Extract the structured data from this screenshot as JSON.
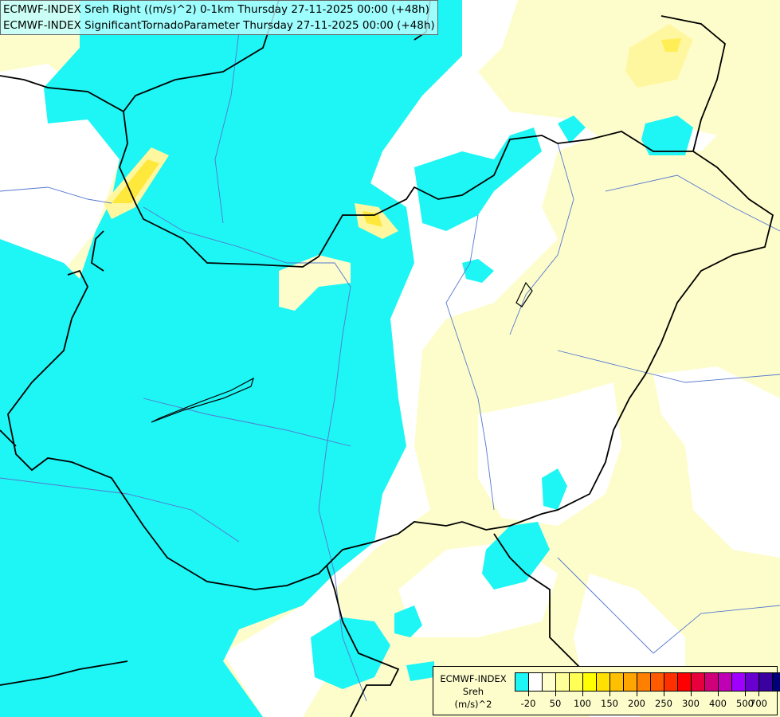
{
  "title": {
    "line1": "ECMWF-INDEX Sreh Right ((m/s)^2) 0-1km Thursday 27-11-2025 00:00 (+48h)",
    "line2": "ECMWF-INDEX SignificantTornadoParameter Thursday 27-11-2025 00:00 (+48h)"
  },
  "legend": {
    "line1": "ECMWF-INDEX",
    "line2": "Sreh",
    "line3": "(m/s)^2",
    "colors": [
      "#1ef5f5",
      "#ffffff",
      "#ffffcc",
      "#ffff99",
      "#ffff55",
      "#ffff00",
      "#ffe000",
      "#ffc000",
      "#ffa500",
      "#ff8000",
      "#ff5a00",
      "#ff3000",
      "#ff0000",
      "#e8003c",
      "#d0007a",
      "#c000b4",
      "#a000ff",
      "#6a00d0",
      "#3a00a0",
      "#00007a"
    ],
    "ticks": [
      {
        "label": "-20",
        "after": 1
      },
      {
        "label": "50",
        "after": 3
      },
      {
        "label": "100",
        "after": 5
      },
      {
        "label": "150",
        "after": 7
      },
      {
        "label": "200",
        "after": 9
      },
      {
        "label": "250",
        "after": 11
      },
      {
        "label": "300",
        "after": 13
      },
      {
        "label": "400",
        "after": 15
      },
      {
        "label": "500",
        "after": 17
      },
      {
        "label": "700",
        "after": 18
      }
    ]
  },
  "map_colors": {
    "cyan": "#1ef5f5",
    "white": "#ffffff",
    "pale_yellow": "#fdfdcc",
    "yellow": "#ffee55",
    "border": "#000000",
    "river": "#5577cc"
  }
}
